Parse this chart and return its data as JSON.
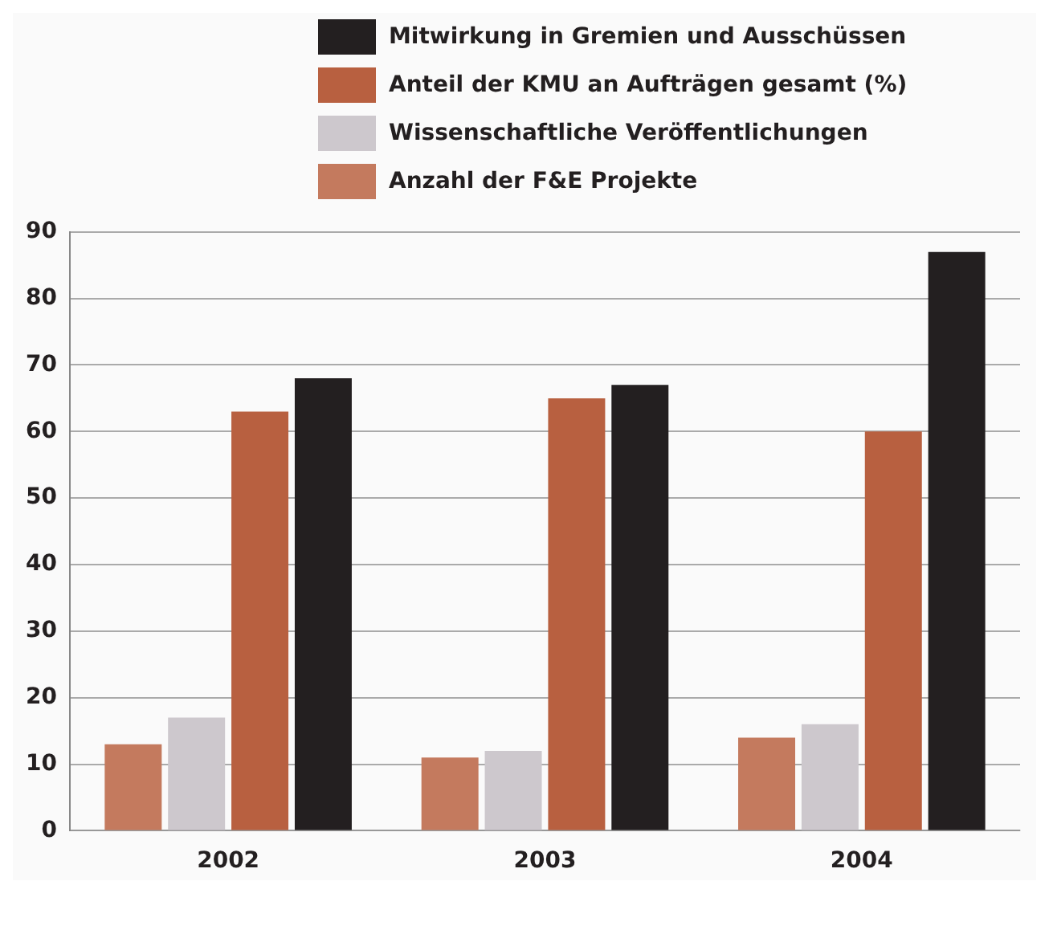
{
  "chart_data": {
    "type": "bar",
    "categories": [
      "2002",
      "2003",
      "2004"
    ],
    "series": [
      {
        "name": "Anzahl der F&E Projekte",
        "color": "#c47a5e",
        "values": [
          13,
          11,
          14
        ]
      },
      {
        "name": "Wissenschaftliche Veröffentlichungen",
        "color": "#cdc8cd",
        "values": [
          17,
          12,
          16
        ]
      },
      {
        "name": "Anteil der KMU an Aufträgen gesamt (%)",
        "color": "#b86040",
        "values": [
          63,
          65,
          60
        ]
      },
      {
        "name": "Mitwirkung in Gremien und Ausschüssen",
        "color": "#231f20",
        "values": [
          68,
          67,
          87
        ]
      }
    ],
    "ylim": [
      0,
      90
    ],
    "yticks": [
      0,
      10,
      20,
      30,
      40,
      50,
      60,
      70,
      80,
      90
    ],
    "grid": "y",
    "legend": "top"
  }
}
